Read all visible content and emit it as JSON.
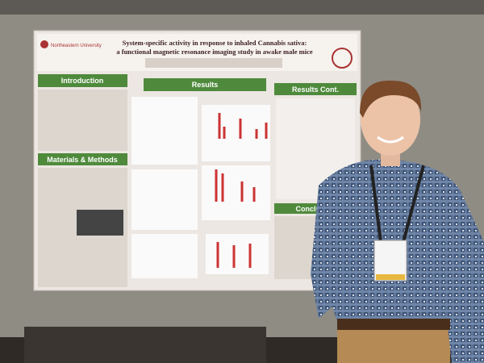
{
  "poster": {
    "institution": "Northeastern University",
    "title": [
      "System-specific activity in response to inhaled Cannabis sativa:",
      "a functional magnetic resonance imaging study in awake male mice"
    ],
    "sections": [
      "Introduction",
      "Materials & Methods",
      "Results",
      "Results Cont.",
      "Conclusion"
    ]
  }
}
